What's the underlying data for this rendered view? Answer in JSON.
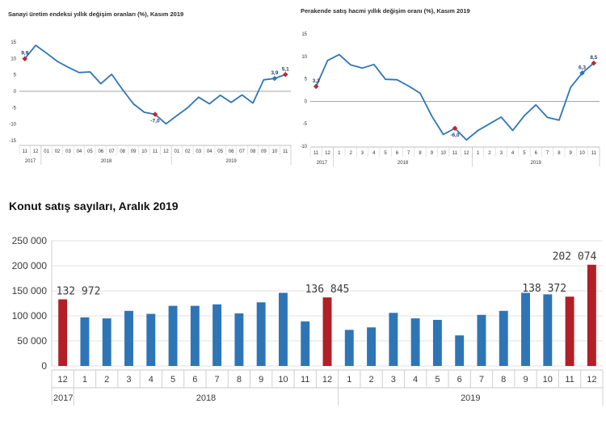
{
  "chart_data": [
    {
      "type": "line",
      "title": "Sanayi üretim endeksi yıllık değişim oranları (%), Kasım 2019",
      "x": [
        "11",
        "12",
        "01",
        "02",
        "03",
        "04",
        "05",
        "06",
        "07",
        "08",
        "09",
        "10",
        "11",
        "12",
        "01",
        "02",
        "03",
        "04",
        "05",
        "06",
        "07",
        "08",
        "09",
        "10",
        "11"
      ],
      "year_groups": [
        {
          "label": "2017",
          "from": 0,
          "to": 1
        },
        {
          "label": "2018",
          "from": 2,
          "to": 13
        },
        {
          "label": "2019",
          "from": 14,
          "to": 24
        }
      ],
      "values": [
        9.9,
        14.0,
        11.6,
        9.1,
        7.3,
        5.7,
        5.9,
        2.3,
        5.2,
        0.5,
        -3.8,
        -6.4,
        -7.0,
        -9.9,
        -7.4,
        -5.0,
        -1.8,
        -3.8,
        -1.2,
        -3.4,
        -1.1,
        -3.6,
        3.5,
        3.9,
        5.1
      ],
      "highlights": [
        {
          "index": 0,
          "label": "9,9",
          "color": "#c0282d"
        },
        {
          "index": 12,
          "label": "-7,0",
          "color": "#c0282d"
        },
        {
          "index": 23,
          "label": "3,9",
          "color": "#2e75b6"
        },
        {
          "index": 24,
          "label": "5,1",
          "color": "#c0282d"
        }
      ],
      "yticks": [
        "15",
        "10",
        "5",
        "0",
        "-5",
        "-10",
        "-15"
      ],
      "ylim": [
        -15,
        15
      ],
      "color": "#2e75b6"
    },
    {
      "type": "line",
      "title": "Perakende satış hacmi yıllık değişim oranı (%), Kasım 2019",
      "x": [
        "11",
        "12",
        "1",
        "2",
        "3",
        "4",
        "5",
        "6",
        "7",
        "8",
        "9",
        "10",
        "11",
        "12",
        "1",
        "2",
        "3",
        "4",
        "5",
        "6",
        "7",
        "8",
        "9",
        "10",
        "11"
      ],
      "year_groups": [
        {
          "label": "2017",
          "from": 0,
          "to": 1
        },
        {
          "label": "2018",
          "from": 2,
          "to": 13
        },
        {
          "label": "2019",
          "from": 14,
          "to": 24
        }
      ],
      "values": [
        3.3,
        9.1,
        10.4,
        8.1,
        7.4,
        8.2,
        4.9,
        4.8,
        3.4,
        1.8,
        -3.3,
        -7.4,
        -6.0,
        -8.6,
        -6.5,
        -5.0,
        -3.5,
        -6.5,
        -3.2,
        -0.8,
        -3.6,
        -4.2,
        3.1,
        6.3,
        8.5
      ],
      "highlights": [
        {
          "index": 0,
          "label": "3,3",
          "color": "#c0282d"
        },
        {
          "index": 12,
          "label": "-6,0",
          "color": "#c0282d"
        },
        {
          "index": 23,
          "label": "6,3",
          "color": "#2e75b6"
        },
        {
          "index": 24,
          "label": "8,5",
          "color": "#c0282d"
        }
      ],
      "yticks": [
        "15",
        "10",
        "5",
        "0",
        "-5",
        "-10"
      ],
      "ylim": [
        -10,
        15
      ],
      "color": "#2e75b6"
    },
    {
      "type": "bar",
      "title": "Konut satış sayıları, Aralık 2019",
      "categories": [
        "12",
        "1",
        "2",
        "3",
        "4",
        "5",
        "6",
        "7",
        "8",
        "9",
        "10",
        "11",
        "12",
        "1",
        "2",
        "3",
        "4",
        "5",
        "6",
        "7",
        "8",
        "9",
        "10",
        "11",
        "12"
      ],
      "year_groups": [
        {
          "label": "2017",
          "from": 0,
          "to": 0
        },
        {
          "label": "2018",
          "from": 1,
          "to": 12
        },
        {
          "label": "2019",
          "from": 13,
          "to": 24
        }
      ],
      "values": [
        132972,
        97000,
        95000,
        110000,
        104000,
        120000,
        120000,
        123000,
        105000,
        127000,
        146000,
        89000,
        136845,
        72000,
        77000,
        106000,
        95000,
        92000,
        61000,
        102000,
        110000,
        146000,
        143000,
        138372,
        202074
      ],
      "highlight_indices": [
        0,
        12,
        23,
        24
      ],
      "data_labels": [
        {
          "index": 0,
          "label": "132 972"
        },
        {
          "index": 12,
          "label": "136 845"
        },
        {
          "index": 23,
          "label": "138 372"
        },
        {
          "index": 24,
          "label": "202 074"
        }
      ],
      "yticks": [
        "250 000",
        "200 000",
        "150 000",
        "100 000",
        "50 000",
        "0"
      ],
      "ylim": [
        0,
        250000
      ],
      "bar_color": "#2e75b6",
      "highlight_color": "#b11f27"
    }
  ]
}
